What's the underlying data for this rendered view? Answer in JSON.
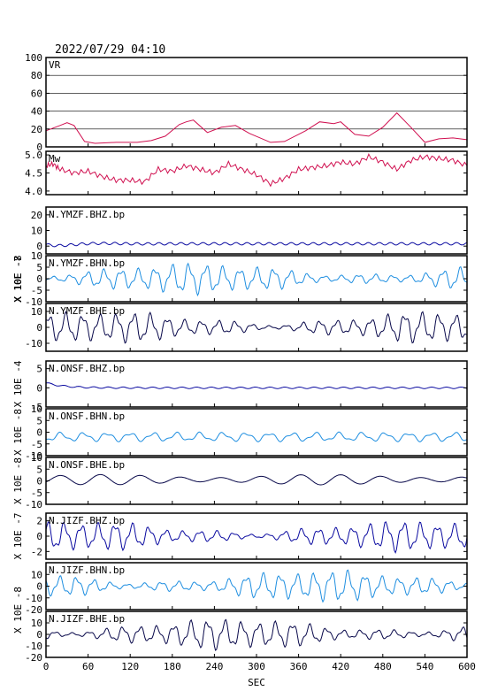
{
  "header": {
    "datetime": "2022/07/29 04:10"
  },
  "chart_data": {
    "type": "line",
    "xlabel": "SEC",
    "xlim": [
      0,
      600
    ],
    "xticks": [
      0,
      60,
      120,
      180,
      240,
      300,
      360,
      420,
      480,
      540,
      600
    ],
    "panels": [
      {
        "name": "VR",
        "color": "#d01050",
        "ylim": [
          0,
          100
        ],
        "yticks": [
          0,
          20,
          40,
          60,
          80,
          100
        ],
        "gridlines": [
          20,
          40,
          60,
          80
        ],
        "x": [
          0,
          20,
          30,
          40,
          55,
          70,
          100,
          130,
          150,
          170,
          190,
          200,
          210,
          230,
          250,
          270,
          290,
          320,
          340,
          370,
          390,
          410,
          420,
          440,
          460,
          480,
          500,
          520,
          540,
          560,
          580,
          600
        ],
        "y": [
          18,
          24,
          27,
          24,
          6,
          4,
          5,
          5,
          7,
          12,
          25,
          28,
          30,
          16,
          22,
          24,
          15,
          5,
          6,
          18,
          28,
          26,
          28,
          14,
          12,
          22,
          38,
          22,
          5,
          9,
          10,
          8
        ]
      },
      {
        "name": "Mw",
        "color": "#d01050",
        "ylim": [
          3.9,
          5.1
        ],
        "yticks": [
          4.0,
          4.5,
          5.0
        ],
        "x": [
          0,
          10,
          20,
          40,
          60,
          80,
          100,
          120,
          140,
          160,
          180,
          200,
          220,
          240,
          260,
          280,
          300,
          320,
          340,
          360,
          380,
          400,
          420,
          440,
          460,
          480,
          500,
          520,
          540,
          560,
          580,
          600
        ],
        "y": [
          4.7,
          4.75,
          4.6,
          4.5,
          4.55,
          4.4,
          4.3,
          4.3,
          4.25,
          4.6,
          4.55,
          4.7,
          4.6,
          4.5,
          4.75,
          4.6,
          4.45,
          4.2,
          4.35,
          4.6,
          4.65,
          4.7,
          4.8,
          4.75,
          4.95,
          4.8,
          4.6,
          4.85,
          4.95,
          4.9,
          4.85,
          4.7
        ]
      },
      {
        "name": "N.YMZF.BHZ.bp",
        "color": "#0a0aa0",
        "ylim": [
          -5,
          25
        ],
        "yticks": [
          0,
          10,
          20
        ]
      },
      {
        "name": "N.YMZF.BHN.bp",
        "color": "#1e8ee0",
        "ylim": [
          -10,
          10
        ],
        "yticks": [
          -10,
          -5,
          0,
          5,
          10
        ]
      },
      {
        "name": "N.YMZF.BHE.bp",
        "color": "#08084a",
        "ylim": [
          -15,
          15
        ],
        "yticks": [
          -10,
          0,
          10
        ]
      },
      {
        "name": "N.ONSF.BHZ.bp",
        "color": "#0a0aa0",
        "ylim": [
          -5,
          7
        ],
        "yticks": [
          -5,
          0,
          5
        ]
      },
      {
        "name": "N.ONSF.BHN.bp",
        "color": "#1e8ee0",
        "ylim": [
          -10,
          10
        ],
        "yticks": [
          -10,
          -5,
          0,
          5,
          10
        ]
      },
      {
        "name": "N.ONSF.BHE.bp",
        "color": "#08084a",
        "ylim": [
          -10,
          10
        ],
        "yticks": [
          -10,
          -5,
          0,
          5,
          10
        ]
      },
      {
        "name": "N.JIZF.BHZ.bp",
        "color": "#0a0aa0",
        "ylim": [
          -3,
          3
        ],
        "yticks": [
          -2,
          0,
          2
        ]
      },
      {
        "name": "N.JIZF.BHN.bp",
        "color": "#1e8ee0",
        "ylim": [
          -20,
          20
        ],
        "yticks": [
          -20,
          -10,
          0,
          10
        ]
      },
      {
        "name": "N.JIZF.BHE.bp",
        "color": "#08084a",
        "ylim": [
          -20,
          20
        ],
        "yticks": [
          -20,
          -10,
          0,
          10
        ]
      }
    ],
    "exponent_labels": [
      {
        "text": "X 10E -7",
        "panels": [
          2,
          4
        ]
      },
      {
        "text": "X 10E -8",
        "panels": [
          3,
          3
        ]
      },
      {
        "text": "X 10E -4",
        "panels": [
          5,
          5
        ]
      },
      {
        "text": "X 10E -8",
        "panels": [
          6,
          6
        ]
      },
      {
        "text": "X 10E -8",
        "panels": [
          7,
          7
        ]
      },
      {
        "text": "X 10E -7",
        "panels": [
          8,
          8
        ]
      },
      {
        "text": "X 10E -8",
        "panels": [
          9,
          10
        ]
      }
    ]
  }
}
